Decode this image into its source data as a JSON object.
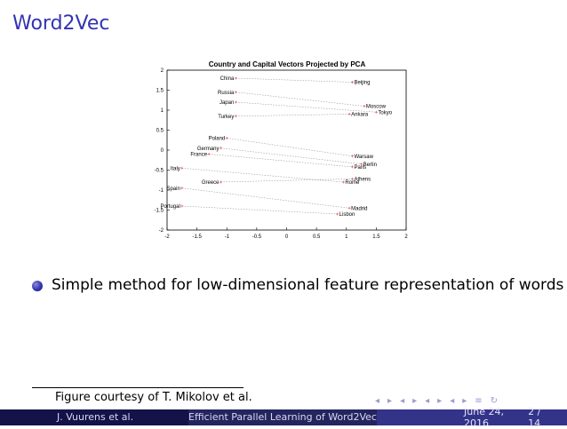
{
  "slide": {
    "title": "Word2Vec",
    "bullet": "Simple method for low-dimensional feature representation of words",
    "footnote": "Figure courtesy of T. Mikolov et al."
  },
  "nav_icons": [
    "◂",
    "▸",
    "◂",
    "▸",
    "◂",
    "▸",
    "◂",
    "▸",
    "≡",
    "↻"
  ],
  "footer": {
    "author": "J. Vuurens et al.",
    "title": "Efficient Parallel Learning of Word2Vec",
    "date": "June 24, 2016",
    "page": "2 / 14"
  },
  "colors": {
    "title": "#3333b2",
    "footer_dark": "#13134a",
    "footer_mid": "#24245f",
    "footer_light": "#33338a"
  },
  "chart_data": {
    "type": "scatter",
    "title": "Country and Capital Vectors Projected by PCA",
    "xlim": [
      -2,
      2
    ],
    "ylim": [
      -2,
      2
    ],
    "xticks": [
      "-2",
      "-1.5",
      "-1",
      "-0.5",
      "0",
      "0.5",
      "1",
      "1.5",
      "2"
    ],
    "yticks": [
      "2",
      "1.5",
      "1",
      "0.5",
      "0",
      "-0.5",
      "-1",
      "-1.5",
      "-2"
    ],
    "grid": false,
    "pairs": [
      {
        "country": "China",
        "cx": -0.85,
        "cy": 1.8,
        "capital": "Beijing",
        "kx": 1.1,
        "ky": 1.7
      },
      {
        "country": "Russia",
        "cx": -0.85,
        "cy": 1.45,
        "capital": "Moscow",
        "kx": 1.3,
        "ky": 1.1
      },
      {
        "country": "Japan",
        "cx": -0.85,
        "cy": 1.2,
        "capital": "Tokyo",
        "kx": 1.5,
        "ky": 0.95
      },
      {
        "country": "Turkey",
        "cx": -0.85,
        "cy": 0.85,
        "capital": "Ankara",
        "kx": 1.05,
        "ky": 0.9
      },
      {
        "country": "Poland",
        "cx": -1.0,
        "cy": 0.3,
        "capital": "Warsaw",
        "kx": 1.1,
        "ky": -0.15
      },
      {
        "country": "Germany",
        "cx": -1.1,
        "cy": 0.05,
        "capital": "Berlin",
        "kx": 1.25,
        "ky": -0.35
      },
      {
        "country": "France",
        "cx": -1.3,
        "cy": -0.1,
        "capital": "Paris",
        "kx": 1.1,
        "ky": -0.42
      },
      {
        "country": "Italy",
        "cx": -1.75,
        "cy": -0.45,
        "capital": "Rome",
        "kx": 0.95,
        "ky": -0.8
      },
      {
        "country": "Greece",
        "cx": -1.1,
        "cy": -0.8,
        "capital": "Athens",
        "kx": 1.1,
        "ky": -0.72
      },
      {
        "country": "Spain",
        "cx": -1.75,
        "cy": -0.95,
        "capital": "Madrid",
        "kx": 1.05,
        "ky": -1.45
      },
      {
        "country": "Portugal",
        "cx": -1.75,
        "cy": -1.4,
        "capital": "Lisbon",
        "kx": 0.85,
        "ky": -1.6
      }
    ]
  }
}
